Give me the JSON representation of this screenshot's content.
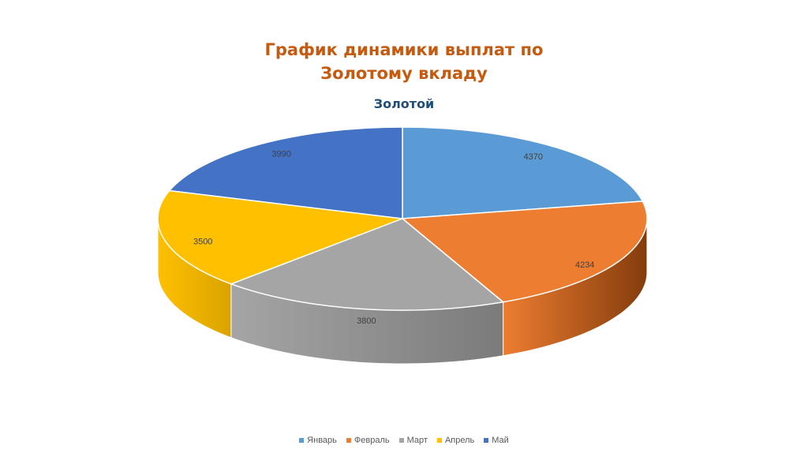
{
  "slide": {
    "title_line1": "График динамики выплат по",
    "title_line2": "Золотому вкладу"
  },
  "chart_data": {
    "type": "pie",
    "title": "Золотой",
    "three_d": true,
    "categories": [
      "Январь",
      "Февраль",
      "Март",
      "Апрель",
      "Май"
    ],
    "values": [
      4370,
      4234,
      3800,
      3500,
      3990
    ],
    "labels": [
      "4370",
      "4234",
      "3800",
      "3500",
      "3990"
    ],
    "colors": [
      "#5b9bd5",
      "#ed7d31",
      "#a5a5a5",
      "#ffc000",
      "#4472c4"
    ],
    "side_colors": [
      "#41719c",
      "#843c0c",
      "#7b7b7b",
      "#d9a400",
      "#2f5597"
    ],
    "start_angle_deg": 0,
    "direction": "clockwise",
    "legend_position": "bottom"
  }
}
